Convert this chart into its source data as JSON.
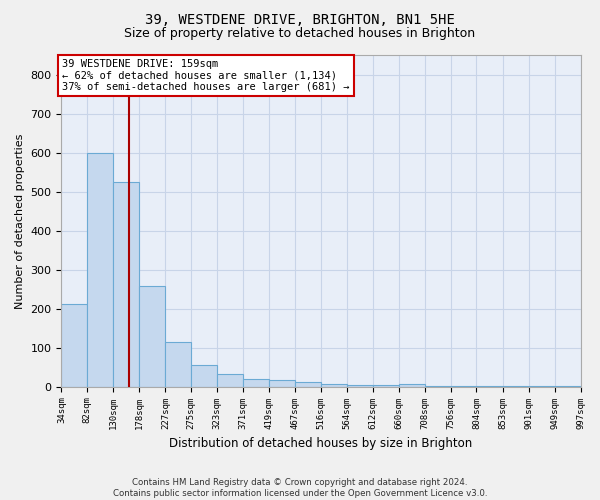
{
  "title_line1": "39, WESTDENE DRIVE, BRIGHTON, BN1 5HE",
  "title_line2": "Size of property relative to detached houses in Brighton",
  "xlabel": "Distribution of detached houses by size in Brighton",
  "ylabel": "Number of detached properties",
  "bar_edges": [
    34,
    82,
    130,
    178,
    227,
    275,
    323,
    371,
    419,
    467,
    516,
    564,
    612,
    660,
    708,
    756,
    804,
    853,
    901,
    949,
    997
  ],
  "bar_heights": [
    213,
    600,
    525,
    257,
    115,
    55,
    32,
    19,
    16,
    12,
    7,
    5,
    4,
    8,
    3,
    2,
    2,
    2,
    2,
    1
  ],
  "bar_color": "#c5d8ee",
  "bar_edgecolor": "#6baad4",
  "property_size": 159,
  "property_line_color": "#aa0000",
  "annotation_text": "39 WESTDENE DRIVE: 159sqm\n← 62% of detached houses are smaller (1,134)\n37% of semi-detached houses are larger (681) →",
  "annotation_box_facecolor": "#ffffff",
  "annotation_box_edgecolor": "#cc0000",
  "ylim": [
    0,
    850
  ],
  "yticks": [
    0,
    100,
    200,
    300,
    400,
    500,
    600,
    700,
    800
  ],
  "grid_color": "#c8d4e8",
  "plot_bg_color": "#e8eef8",
  "fig_bg_color": "#f0f0f0",
  "title1_fontsize": 10,
  "title2_fontsize": 9,
  "footnote": "Contains HM Land Registry data © Crown copyright and database right 2024.\nContains public sector information licensed under the Open Government Licence v3.0."
}
